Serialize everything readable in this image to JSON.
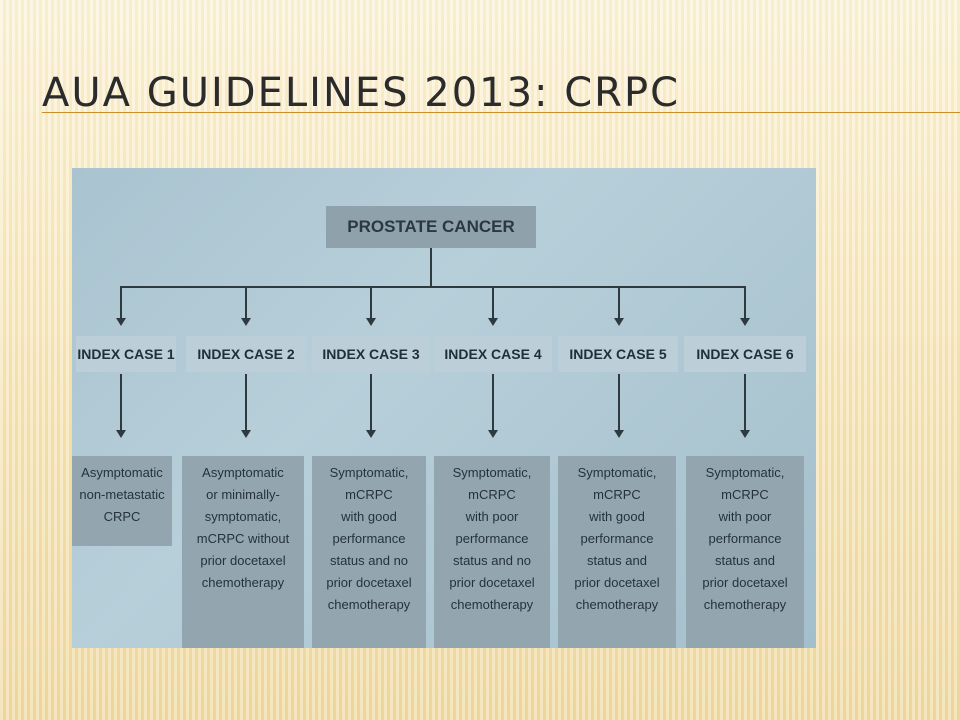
{
  "slide": {
    "title": "AUA GUIDELINES 2013: CRPC"
  },
  "diagram": {
    "root_label": "PROSTATE CANCER",
    "cases": [
      {
        "label": "INDEX CASE 1",
        "description": "Asymptomatic\nnon-metastatic\nCRPC"
      },
      {
        "label": "INDEX CASE 2",
        "description": "Asymptomatic\nor minimally-\nsymptomatic,\nmCRPC without\nprior docetaxel\nchemotherapy"
      },
      {
        "label": "INDEX CASE 3",
        "description": "Symptomatic,\nmCRPC\nwith good\nperformance\nstatus and no\nprior docetaxel\nchemotherapy"
      },
      {
        "label": "INDEX CASE 4",
        "description": "Symptomatic,\nmCRPC\nwith poor\nperformance\nstatus and no\nprior docetaxel\nchemotherapy"
      },
      {
        "label": "INDEX CASE 5",
        "description": "Symptomatic,\nmCRPC\nwith good\nperformance\nstatus and\nprior docetaxel\nchemotherapy"
      },
      {
        "label": "INDEX CASE 6",
        "description": "Symptomatic,\nmCRPC\nwith poor\nperformance\nstatus and\nprior docetaxel\nchemotherapy"
      }
    ]
  }
}
